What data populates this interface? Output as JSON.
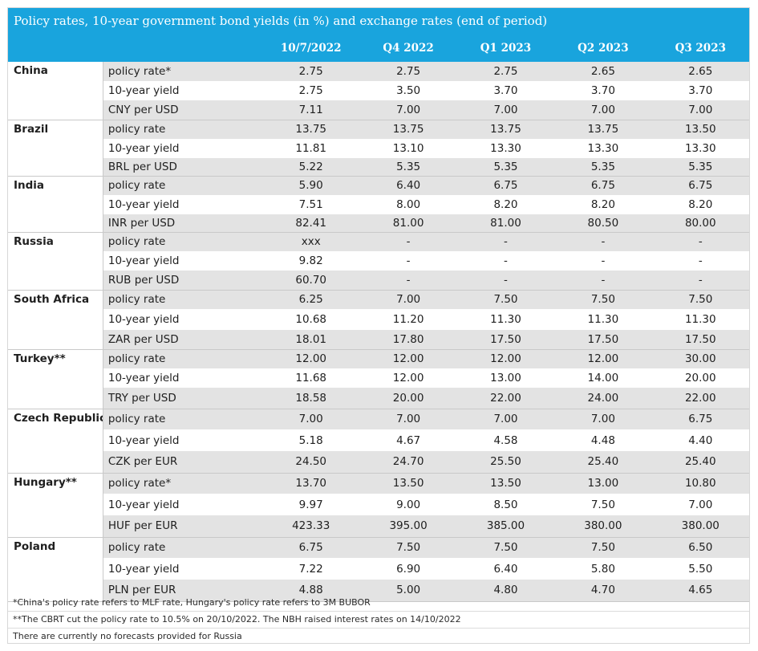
{
  "title": "Policy rates, 10-year government bond yields (in %) and exchange rates (end of period)",
  "columns": [
    "10/7/2022",
    "Q4 2022",
    "Q1 2023",
    "Q2 2023",
    "Q3 2023"
  ],
  "countries": [
    {
      "name": "China",
      "rows": [
        {
          "label": "policy rate*",
          "values": [
            "2.75",
            "2.75",
            "2.75",
            "2.65",
            "2.65"
          ]
        },
        {
          "label": "10-year yield",
          "values": [
            "2.75",
            "3.50",
            "3.70",
            "3.70",
            "3.70"
          ]
        },
        {
          "label": "CNY per USD",
          "values": [
            "7.11",
            "7.00",
            "7.00",
            "7.00",
            "7.00"
          ]
        }
      ]
    },
    {
      "name": "Brazil",
      "rows": [
        {
          "label": "policy rate",
          "values": [
            "13.75",
            "13.75",
            "13.75",
            "13.75",
            "13.50"
          ]
        },
        {
          "label": "10-year yield",
          "values": [
            "11.81",
            "13.10",
            "13.30",
            "13.30",
            "13.30"
          ]
        },
        {
          "label": "BRL per USD",
          "values": [
            "5.22",
            "5.35",
            "5.35",
            "5.35",
            "5.35"
          ]
        }
      ]
    },
    {
      "name": "India",
      "rows": [
        {
          "label": "policy rate",
          "values": [
            "5.90",
            "6.40",
            "6.75",
            "6.75",
            "6.75"
          ]
        },
        {
          "label": "10-year yield",
          "values": [
            "7.51",
            "8.00",
            "8.20",
            "8.20",
            "8.20"
          ]
        },
        {
          "label": "INR per USD",
          "values": [
            "82.41",
            "81.00",
            "81.00",
            "80.50",
            "80.00"
          ]
        }
      ]
    },
    {
      "name": "Russia",
      "rows": [
        {
          "label": "policy rate",
          "values": [
            "xxx",
            "-",
            "-",
            "-",
            "-"
          ]
        },
        {
          "label": "10-year yield",
          "values": [
            "9.82",
            "-",
            "-",
            "-",
            "-"
          ]
        },
        {
          "label": "RUB per USD",
          "values": [
            "60.70",
            "-",
            "-",
            "-",
            "-"
          ]
        }
      ]
    },
    {
      "name": "South Africa",
      "rows": [
        {
          "label": "policy rate",
          "values": [
            "6.25",
            "7.00",
            "7.50",
            "7.50",
            "7.50"
          ]
        },
        {
          "label": "10-year yield",
          "values": [
            "10.68",
            "11.20",
            "11.30",
            "11.30",
            "11.30"
          ]
        },
        {
          "label": "ZAR per USD",
          "values": [
            "18.01",
            "17.80",
            "17.50",
            "17.50",
            "17.50"
          ]
        }
      ]
    },
    {
      "name": "Turkey**",
      "rows": [
        {
          "label": "policy rate",
          "values": [
            "12.00",
            "12.00",
            "12.00",
            "12.00",
            "30.00"
          ]
        },
        {
          "label": "10-year yield",
          "values": [
            "11.68",
            "12.00",
            "13.00",
            "14.00",
            "20.00"
          ]
        },
        {
          "label": "TRY per USD",
          "values": [
            "18.58",
            "20.00",
            "22.00",
            "24.00",
            "22.00"
          ]
        }
      ]
    },
    {
      "name": "Czech Republic",
      "rows": [
        {
          "label": "policy rate",
          "values": [
            "7.00",
            "7.00",
            "7.00",
            "7.00",
            "6.75"
          ]
        },
        {
          "label": "10-year yield",
          "values": [
            "5.18",
            "4.67",
            "4.58",
            "4.48",
            "4.40"
          ]
        },
        {
          "label": "CZK per EUR",
          "values": [
            "24.50",
            "24.70",
            "25.50",
            "25.40",
            "25.40"
          ]
        }
      ]
    },
    {
      "name": "Hungary**",
      "rows": [
        {
          "label": "policy rate*",
          "values": [
            "13.70",
            "13.50",
            "13.50",
            "13.00",
            "10.80"
          ]
        },
        {
          "label": "10-year yield",
          "values": [
            "9.97",
            "9.00",
            "8.50",
            "7.50",
            "7.00"
          ]
        },
        {
          "label": "HUF per EUR",
          "values": [
            "423.33",
            "395.00",
            "385.00",
            "380.00",
            "380.00"
          ]
        }
      ]
    },
    {
      "name": "Poland",
      "rows": [
        {
          "label": "policy rate",
          "values": [
            "6.75",
            "7.50",
            "7.50",
            "7.50",
            "6.50"
          ]
        },
        {
          "label": "10-year yield",
          "values": [
            "7.22",
            "6.90",
            "6.40",
            "5.80",
            "5.50"
          ]
        },
        {
          "label": "PLN per EUR",
          "values": [
            "4.88",
            "5.00",
            "4.80",
            "4.70",
            "4.65"
          ]
        }
      ]
    }
  ],
  "notes": [
    "*China's policy rate refers to MLF rate, Hungary's policy rate refers to 3M BUBOR",
    "**The CBRT cut the policy rate to 10.5% on 20/10/2022. The NBH raised interest rates on 14/10/2022",
    "There are currently no forecasts provided for Russia"
  ]
}
